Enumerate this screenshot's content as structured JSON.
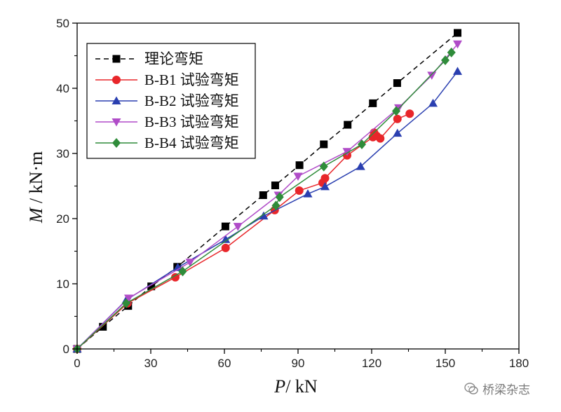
{
  "chart_data": {
    "type": "line",
    "xlabel": {
      "var": "P",
      "unit": "/ kN"
    },
    "ylabel": {
      "var": "M",
      "unit": " / kN·m"
    },
    "xlim": [
      0,
      180
    ],
    "ylim": [
      0,
      50
    ],
    "xticks": [
      0,
      30,
      60,
      90,
      120,
      150,
      180
    ],
    "yticks": [
      0,
      10,
      20,
      30,
      40,
      50
    ],
    "grid": false,
    "legend_position": "top-left",
    "series": [
      {
        "name": "理论弯矩",
        "color": "#000000",
        "marker": "square",
        "dashed": true,
        "x": [
          0,
          10.5,
          20.8,
          30.2,
          40.8,
          60.4,
          75.8,
          80.7,
          90.6,
          100.5,
          110.2,
          120.5,
          130.4,
          155.0
        ],
        "y": [
          0,
          3.4,
          6.6,
          9.6,
          12.6,
          18.8,
          23.6,
          25.1,
          28.2,
          31.4,
          34.4,
          37.7,
          40.8,
          48.5
        ]
      },
      {
        "name": "B-B1 试验弯矩",
        "color": "#e8262a",
        "marker": "circle",
        "dashed": false,
        "x": [
          0,
          20.5,
          40.0,
          60.5,
          80.5,
          90.5,
          100.0,
          101.0,
          110.0,
          120.5,
          121.0,
          122.0,
          123.5,
          130.5,
          135.5
        ],
        "y": [
          0,
          7.0,
          11.0,
          15.5,
          21.3,
          24.3,
          25.5,
          26.2,
          29.7,
          32.5,
          33.2,
          32.7,
          32.3,
          35.3,
          36.1
        ]
      },
      {
        "name": "B-B2 试验弯矩",
        "color": "#2a3fb0",
        "marker": "triangle-up",
        "dashed": false,
        "x": [
          0,
          20.0,
          41.0,
          60.5,
          76.0,
          94.0,
          101.0,
          115.5,
          130.5,
          145.0,
          155.0
        ],
        "y": [
          0,
          7.5,
          12.5,
          16.8,
          20.4,
          23.8,
          24.9,
          28.0,
          33.1,
          37.7,
          42.6
        ]
      },
      {
        "name": "B-B3 试验弯矩",
        "color": "#b04cc8",
        "marker": "triangle-down",
        "dashed": false,
        "x": [
          0,
          21.0,
          46.0,
          65.5,
          82.0,
          90.0,
          110.0,
          131.0,
          144.5,
          155.0
        ],
        "y": [
          0,
          7.8,
          13.3,
          18.8,
          23.6,
          26.5,
          30.3,
          37.0,
          42.0,
          46.8
        ]
      },
      {
        "name": "B-B4 试验弯矩",
        "color": "#2f8c3a",
        "marker": "diamond",
        "dashed": false,
        "x": [
          0,
          20.0,
          43.0,
          81.0,
          82.5,
          100.5,
          116.0,
          130.0,
          150.0,
          152.5
        ],
        "y": [
          0,
          7.0,
          11.9,
          22.0,
          23.3,
          28.0,
          31.4,
          36.5,
          44.3,
          45.5
        ]
      }
    ]
  },
  "watermark": {
    "text": "桥梁杂志",
    "icon": "wechat-icon"
  }
}
